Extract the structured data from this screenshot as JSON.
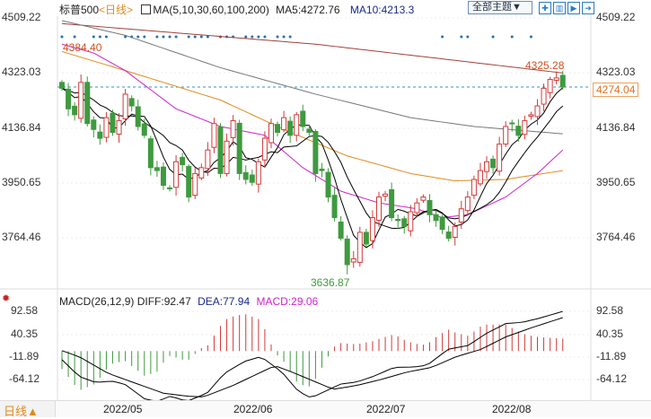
{
  "header": {
    "name": "标普500",
    "period": "<日线>",
    "ma_label": "MA(5,10,30,60,100,200)",
    "ma5": "MA5:4272.76",
    "ma10": "MA10:4213.3",
    "theme_button": "全部主题▼"
  },
  "toolbar_icons": [
    "crosshair-icon",
    "kline-icon",
    "play-icon",
    "exit-icon"
  ],
  "price_axis": [
    "4509.22",
    "4323.03",
    "4136.84",
    "3950.65",
    "3764.46"
  ],
  "current_price": "4274.04",
  "annotations": {
    "high": "4384.40",
    "recent_high": "4325.28",
    "low": "3636.87"
  },
  "macd": {
    "label": "MACD(26,12,9)",
    "diff": "DIFF:92.47",
    "dea": "DEA:77.94",
    "macd": "MACD:29.06",
    "axis": [
      "92.58",
      "40.35",
      "-11.89",
      "-64.12"
    ]
  },
  "dates": [
    "2022/05",
    "2022/06",
    "2022/07",
    "2022/08"
  ],
  "period_button": "日线▲",
  "colors": {
    "up": "#d23a3a",
    "down": "#3f9a3f",
    "ma5": "#000000",
    "ma10": "#000000",
    "ma30": "#cc22cc",
    "ma60": "#e08a1e",
    "ma100": "#777777",
    "ma200": "#a0403a",
    "dots": "#2a6fa8"
  },
  "chart_data": {
    "type": "candlestick",
    "ylim": [
      3636.87,
      4509.22
    ],
    "closes": [
      4270,
      4200,
      4180,
      4290,
      4150,
      4130,
      4100,
      4170,
      4120,
      4160,
      4250,
      4210,
      4140,
      4110,
      4000,
      3990,
      3940,
      3930,
      4020,
      4010,
      3900,
      3980,
      4000,
      4060,
      4150,
      3980,
      4090,
      4160,
      3980,
      3960,
      3950,
      4020,
      4100,
      4150,
      4120,
      4170,
      4110,
      4180,
      4140,
      4120,
      3980,
      3990,
      3900,
      3830,
      3760,
      3670,
      3690,
      3780,
      3740,
      3830,
      3900,
      3910,
      3830,
      3820,
      3800,
      3850,
      3880,
      3900,
      3840,
      3820,
      3790,
      3760,
      3800,
      3860,
      3900,
      3960,
      3990,
      4020,
      4000,
      4080,
      4140,
      4150,
      4110,
      4160,
      4180,
      4210,
      4270,
      4300,
      4305,
      4274
    ],
    "ma_keypoints": {
      "ma30": [
        [
          0,
          4420
        ],
        [
          5,
          4390
        ],
        [
          10,
          4330
        ],
        [
          18,
          4200
        ],
        [
          25,
          4140
        ],
        [
          32,
          4110
        ],
        [
          38,
          4000
        ],
        [
          44,
          3920
        ],
        [
          50,
          3880
        ],
        [
          56,
          3860
        ],
        [
          60,
          3830
        ],
        [
          64,
          3840
        ],
        [
          70,
          3900
        ],
        [
          75,
          3980
        ],
        [
          79,
          4060
        ]
      ],
      "ma60": [
        [
          0,
          4395
        ],
        [
          10,
          4330
        ],
        [
          25,
          4230
        ],
        [
          35,
          4130
        ],
        [
          45,
          4040
        ],
        [
          55,
          3980
        ],
        [
          62,
          3955
        ],
        [
          70,
          3960
        ],
        [
          79,
          3990
        ]
      ],
      "ma100": [
        [
          0,
          4500
        ],
        [
          10,
          4450
        ],
        [
          25,
          4340
        ],
        [
          40,
          4250
        ],
        [
          55,
          4170
        ],
        [
          65,
          4140
        ],
        [
          79,
          4115
        ]
      ],
      "ma200": [
        [
          0,
          4490
        ],
        [
          40,
          4420
        ],
        [
          60,
          4370
        ],
        [
          79,
          4322
        ]
      ]
    },
    "macd_keypoints": {
      "diff": [
        [
          0,
          -20
        ],
        [
          2.7,
          -59
        ],
        [
          5.3,
          -73
        ],
        [
          7.9,
          -70
        ],
        [
          9.9,
          -77
        ],
        [
          13.1,
          -112
        ],
        [
          15.1,
          -117
        ],
        [
          17.1,
          -105
        ],
        [
          19.7,
          -117
        ],
        [
          22.9,
          -98
        ],
        [
          25.6,
          -52
        ],
        [
          28.8,
          -24
        ],
        [
          31.4,
          -13
        ],
        [
          34.7,
          -49
        ],
        [
          37.3,
          -94
        ],
        [
          39.3,
          -109
        ],
        [
          41.9,
          -91
        ],
        [
          43.9,
          -77
        ],
        [
          46.5,
          -72
        ],
        [
          49.1,
          -59
        ],
        [
          52.4,
          -38
        ],
        [
          55.6,
          -37
        ],
        [
          57.6,
          -33
        ],
        [
          60.9,
          4
        ],
        [
          62.2,
          8
        ],
        [
          64.1,
          13
        ],
        [
          66.8,
          40
        ],
        [
          70,
          64
        ],
        [
          72.6,
          67
        ],
        [
          75.2,
          76
        ],
        [
          79,
          92.47
        ]
      ],
      "dea": [
        [
          0,
          1
        ],
        [
          2.7,
          -13
        ],
        [
          7.3,
          -52
        ],
        [
          12,
          -77
        ],
        [
          16,
          -98
        ],
        [
          19.7,
          -105
        ],
        [
          22.3,
          -107
        ],
        [
          27,
          -80
        ],
        [
          31,
          -52
        ],
        [
          33.6,
          -34
        ],
        [
          36.3,
          -49
        ],
        [
          40.2,
          -73
        ],
        [
          42.8,
          -89
        ],
        [
          46.5,
          -80
        ],
        [
          50.4,
          -66
        ],
        [
          54.4,
          -49
        ],
        [
          58.3,
          -38
        ],
        [
          62.2,
          -13
        ],
        [
          66.1,
          4
        ],
        [
          70,
          33
        ],
        [
          74,
          54
        ],
        [
          79,
          77.94
        ]
      ]
    },
    "dot_indices": [
      0,
      2,
      5,
      6,
      7,
      10,
      11,
      12,
      13,
      15,
      16,
      17,
      18,
      20,
      21,
      22,
      23,
      25,
      26,
      27,
      29,
      30,
      31,
      32,
      34,
      35,
      36,
      60,
      63,
      64,
      68,
      71,
      74
    ]
  }
}
